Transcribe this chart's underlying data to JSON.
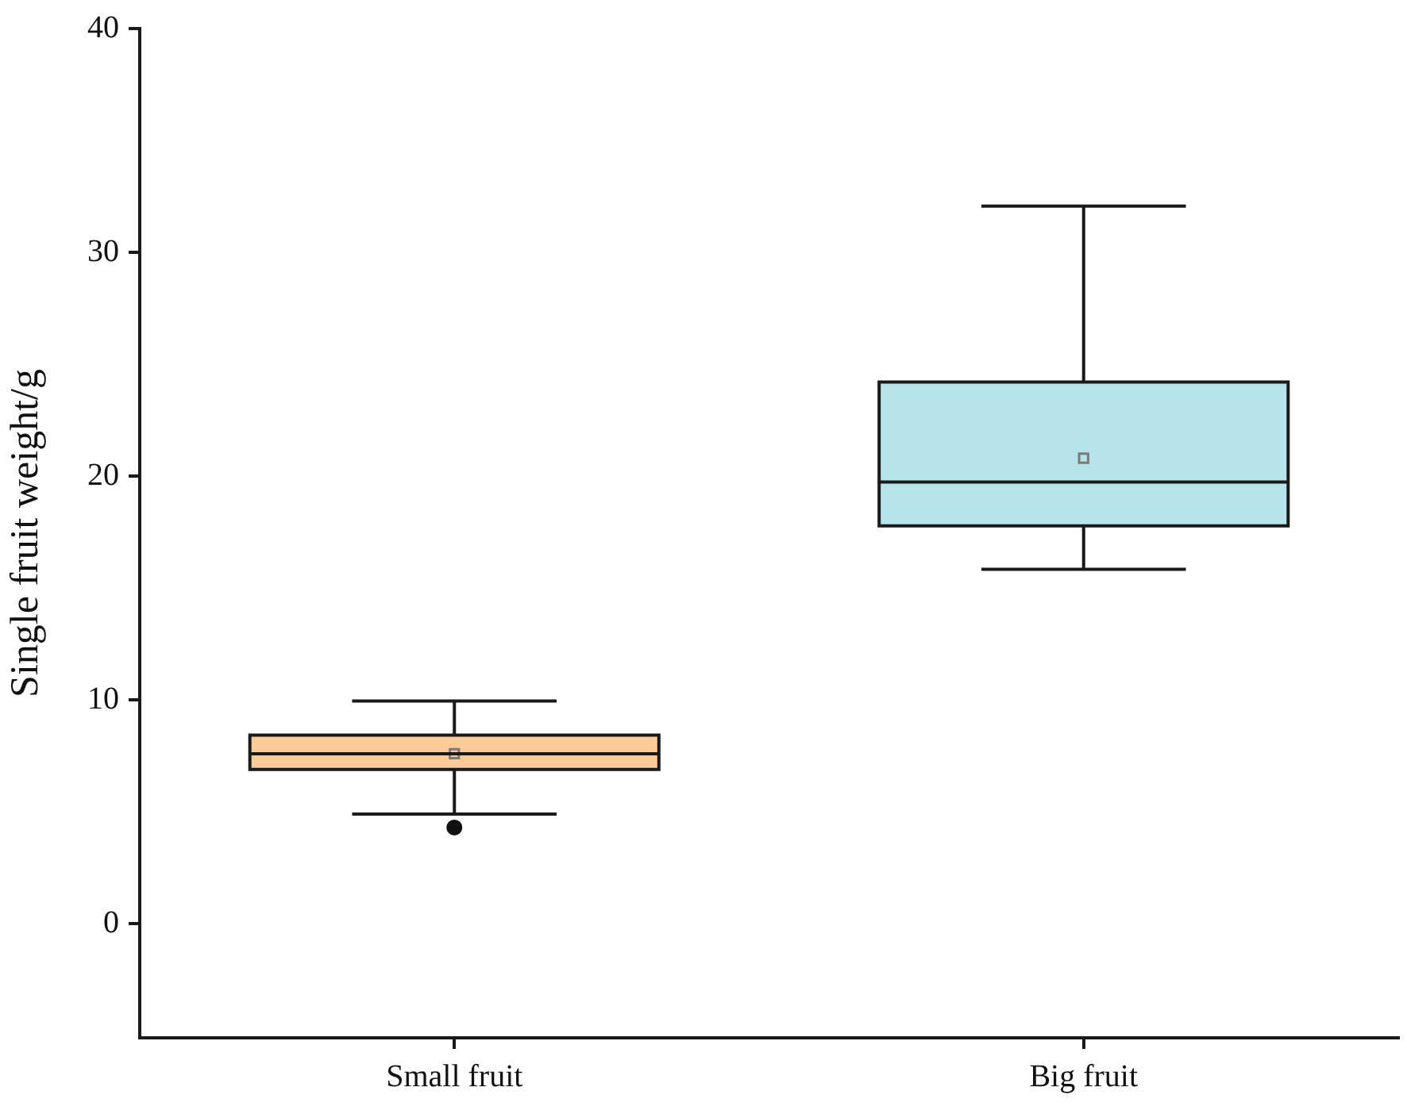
{
  "chart_data": {
    "type": "box",
    "ylabel": "Single fruit weight/g",
    "categories": [
      "Small fruit",
      "Big fruit"
    ],
    "colors": [
      "#fdca98",
      "#b7e4ea"
    ],
    "boxes": [
      {
        "low": 4.9,
        "q1": 6.89,
        "median": 7.59,
        "q3": 8.43,
        "high": 9.95,
        "mean": 7.6,
        "outliers": [
          4.3
        ]
      },
      {
        "low": 15.84,
        "q1": 17.78,
        "median": 19.74,
        "q3": 24.2,
        "high": 32.07,
        "mean": 20.8
      }
    ],
    "ylim": [
      -5.1,
      40
    ],
    "yticks": [
      0,
      10,
      20,
      30,
      40
    ]
  }
}
